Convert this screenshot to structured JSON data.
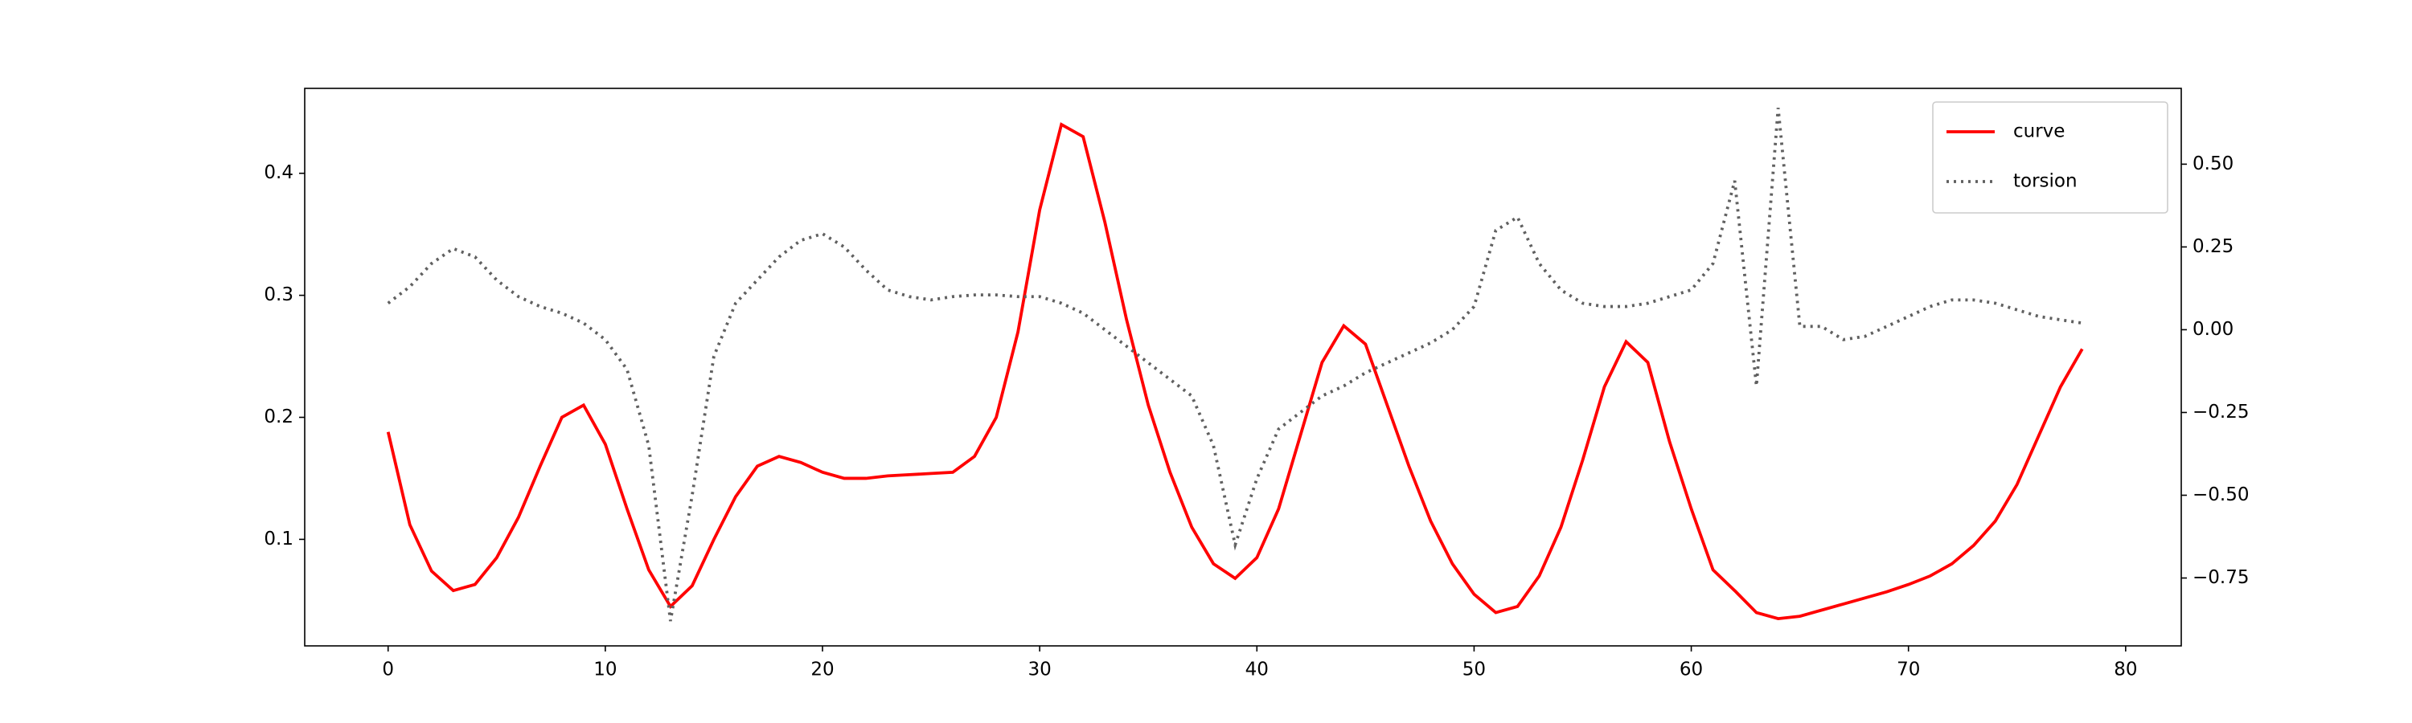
{
  "chart_data": {
    "type": "line",
    "x": [
      0,
      1,
      2,
      3,
      4,
      5,
      6,
      7,
      8,
      9,
      10,
      11,
      12,
      13,
      14,
      15,
      16,
      17,
      18,
      19,
      20,
      21,
      22,
      23,
      24,
      25,
      26,
      27,
      28,
      29,
      30,
      31,
      32,
      33,
      34,
      35,
      36,
      37,
      38,
      39,
      40,
      41,
      42,
      43,
      44,
      45,
      46,
      47,
      48,
      49,
      50,
      51,
      52,
      53,
      54,
      55,
      56,
      57,
      58,
      59,
      60,
      61,
      62,
      63,
      64,
      65,
      66,
      67,
      68,
      69,
      70,
      71,
      72,
      73,
      74,
      75,
      76,
      77,
      78
    ],
    "series": [
      {
        "name": "curve",
        "color": "#ff0000",
        "style": "solid",
        "values": [
          0.188,
          0.112,
          0.074,
          0.058,
          0.063,
          0.085,
          0.118,
          0.16,
          0.2,
          0.21,
          0.178,
          0.125,
          0.075,
          0.045,
          0.062,
          0.1,
          0.135,
          0.16,
          0.168,
          0.163,
          0.155,
          0.15,
          0.15,
          0.152,
          0.153,
          0.154,
          0.155,
          0.168,
          0.2,
          0.27,
          0.37,
          0.44,
          0.43,
          0.36,
          0.28,
          0.21,
          0.155,
          0.11,
          0.08,
          0.068,
          0.085,
          0.125,
          0.185,
          0.245,
          0.275,
          0.26,
          0.21,
          0.16,
          0.115,
          0.08,
          0.055,
          0.04,
          0.045,
          0.07,
          0.11,
          0.165,
          0.225,
          0.262,
          0.245,
          0.18,
          0.125,
          0.075,
          0.058,
          0.04,
          0.035,
          0.037,
          0.042,
          0.047,
          0.052,
          0.057,
          0.063,
          0.07,
          0.08,
          0.095,
          0.115,
          0.145,
          0.185,
          0.225,
          0.256
        ]
      },
      {
        "name": "torsion",
        "color": "#606060",
        "style": "dotted",
        "axis": "y2",
        "values": [
          0.08,
          0.13,
          0.2,
          0.245,
          0.22,
          0.15,
          0.1,
          0.07,
          0.05,
          0.02,
          -0.03,
          -0.12,
          -0.35,
          -0.88,
          -0.5,
          -0.08,
          0.08,
          0.15,
          0.22,
          0.27,
          0.29,
          0.25,
          0.18,
          0.12,
          0.1,
          0.09,
          0.1,
          0.105,
          0.105,
          0.1,
          0.1,
          0.08,
          0.05,
          0.0,
          -0.05,
          -0.1,
          -0.15,
          -0.2,
          -0.35,
          -0.65,
          -0.45,
          -0.3,
          -0.25,
          -0.2,
          -0.17,
          -0.13,
          -0.1,
          -0.07,
          -0.04,
          0.0,
          0.07,
          0.3,
          0.34,
          0.2,
          0.12,
          0.08,
          0.07,
          0.07,
          0.08,
          0.1,
          0.12,
          0.2,
          0.45,
          -0.17,
          0.67,
          0.01,
          0.01,
          -0.03,
          -0.02,
          0.01,
          0.04,
          0.07,
          0.09,
          0.09,
          0.08,
          0.06,
          0.04,
          0.03,
          0.02
        ]
      }
    ],
    "xlim": [
      -3.84,
      82.56
    ],
    "xticks": [
      0,
      10,
      20,
      30,
      40,
      50,
      60,
      70,
      80
    ],
    "ylim": [
      0.0127,
      0.4696
    ],
    "yticks": [
      0.1,
      0.2,
      0.3,
      0.4
    ],
    "y2lim": [
      -0.955,
      0.729
    ],
    "y2ticks": [
      {
        "value": -0.75,
        "label": "−0.75"
      },
      {
        "value": -0.5,
        "label": "−0.50"
      },
      {
        "value": -0.25,
        "label": "−0.25"
      },
      {
        "value": 0,
        "label": "0.00"
      },
      {
        "value": 0.25,
        "label": "0.25"
      },
      {
        "value": 0.5,
        "label": "0.50"
      }
    ],
    "legend": "upper right",
    "grid": false
  }
}
